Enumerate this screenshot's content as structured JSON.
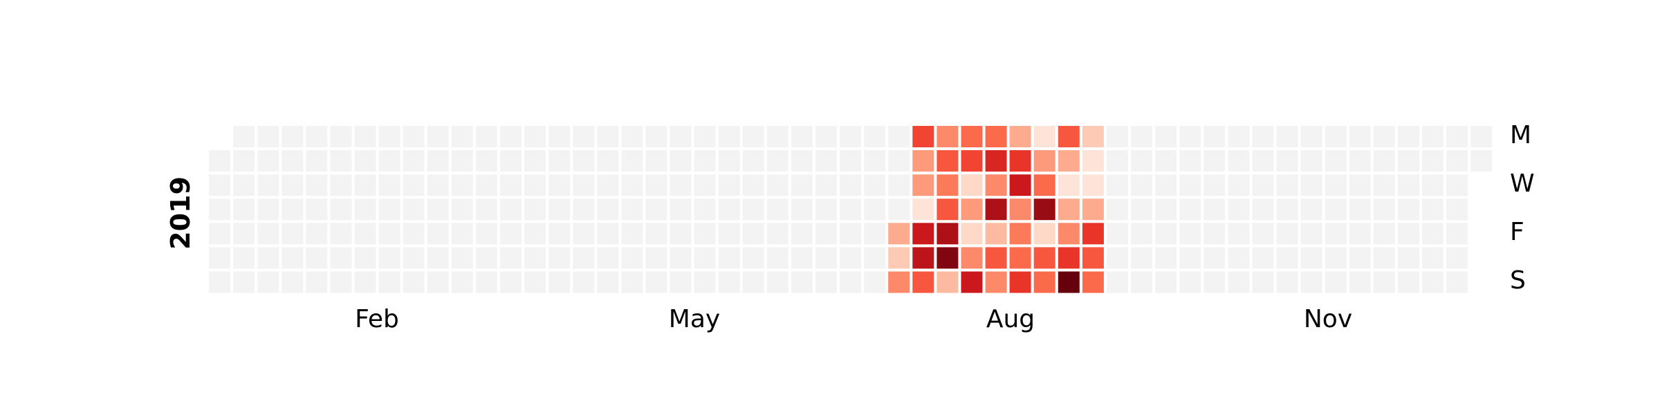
{
  "chart_data": {
    "type": "heatmap",
    "year": "2019",
    "month_labels": [
      "Feb",
      "May",
      "Aug",
      "Nov"
    ],
    "weekday_labels": [
      "M",
      "W",
      "F",
      "S"
    ],
    "colormap": "Reds",
    "empty_color": "#f3f3f3",
    "active_weeks": [
      {
        "week": 28,
        "values": [
          null,
          null,
          null,
          null,
          3.0,
          2.0,
          4.0
        ]
      },
      {
        "week": 29,
        "values": [
          6.0,
          3.5,
          3.5,
          1.0,
          7.5,
          8.0,
          5.5
        ]
      },
      {
        "week": 30,
        "values": [
          4.0,
          5.5,
          4.5,
          5.5,
          8.5,
          9.5,
          2.5
        ]
      },
      {
        "week": 31,
        "values": [
          5.0,
          6.0,
          1.5,
          3.5,
          1.5,
          4.0,
          7.5
        ]
      },
      {
        "week": 32,
        "values": [
          5.0,
          7.0,
          4.0,
          8.5,
          2.5,
          5.5,
          4.0
        ]
      },
      {
        "week": 33,
        "values": [
          3.0,
          6.5,
          7.5,
          4.0,
          4.5,
          5.0,
          6.5
        ]
      },
      {
        "week": 34,
        "values": [
          1.0,
          3.5,
          5.0,
          9.0,
          1.5,
          5.5,
          5.0
        ]
      },
      {
        "week": 35,
        "values": [
          5.5,
          3.0,
          1.0,
          3.0,
          4.0,
          6.5,
          10.0
        ]
      },
      {
        "week": 36,
        "values": [
          2.0,
          1.0,
          1.0,
          3.0,
          6.5,
          5.5,
          5.0
        ]
      }
    ]
  }
}
